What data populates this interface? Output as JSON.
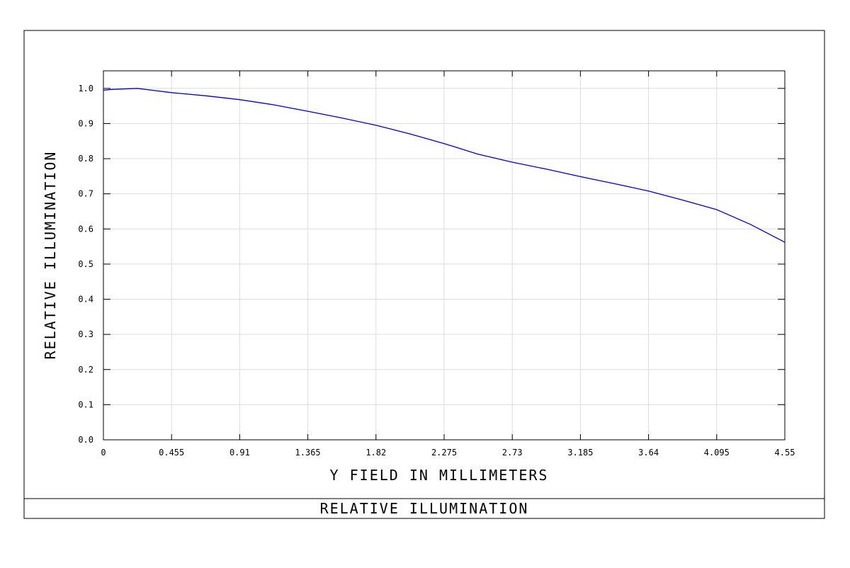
{
  "chart_data": {
    "type": "line",
    "title": "RELATIVE ILLUMINATION",
    "xlabel": "Y FIELD IN MILLIMETERS",
    "ylabel": "RELATIVE ILLUMINATION",
    "xlim": [
      0,
      4.55
    ],
    "ylim": [
      0.0,
      1.05
    ],
    "x_ticks": [
      "0",
      "0.455",
      "0.91",
      "1.365",
      "1.82",
      "2.275",
      "2.73",
      "3.185",
      "3.64",
      "4.095",
      "4.55"
    ],
    "y_ticks": [
      "0.0",
      "0.1",
      "0.2",
      "0.3",
      "0.4",
      "0.5",
      "0.6",
      "0.7",
      "0.8",
      "0.9",
      "1.0"
    ],
    "grid": true,
    "series": [
      {
        "color": "#0000cc",
        "x": [
          0,
          0.05,
          0.227,
          0.455,
          0.68,
          0.91,
          1.14,
          1.365,
          1.59,
          1.82,
          2.05,
          2.275,
          2.5,
          2.73,
          2.96,
          3.185,
          3.41,
          3.64,
          3.87,
          4.095,
          4.32,
          4.55
        ],
        "y": [
          0.995,
          0.997,
          1.0,
          0.988,
          0.979,
          0.968,
          0.953,
          0.935,
          0.916,
          0.895,
          0.87,
          0.843,
          0.813,
          0.79,
          0.77,
          0.749,
          0.729,
          0.708,
          0.682,
          0.655,
          0.613,
          0.562
        ]
      }
    ]
  }
}
